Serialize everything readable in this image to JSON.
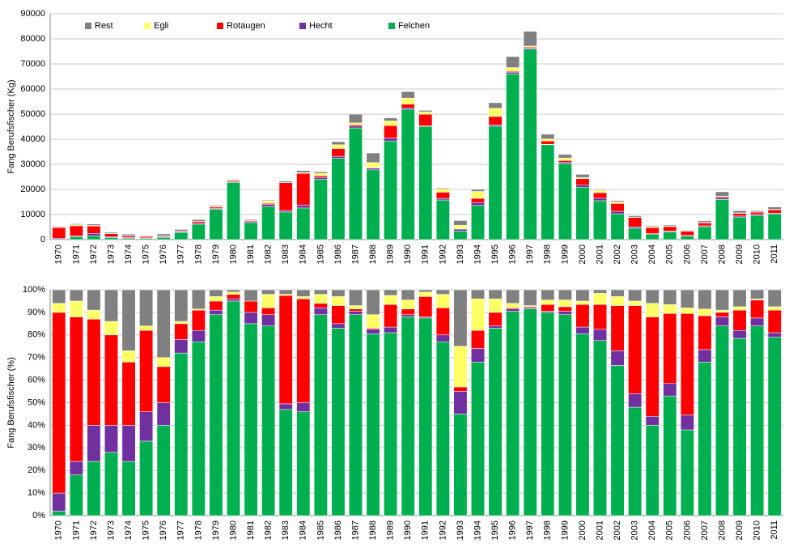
{
  "chart_data": [
    {
      "type": "stacked_bar",
      "y_label": "Fang Berufsfischer (Kg)",
      "categories": [
        "1970",
        "1971",
        "1972",
        "1973",
        "1974",
        "1975",
        "1976",
        "1977",
        "1978",
        "1979",
        "1980",
        "1981",
        "1982",
        "1983",
        "1984",
        "1985",
        "1986",
        "1987",
        "1988",
        "1989",
        "1990",
        "1991",
        "1992",
        "1993",
        "1994",
        "1995",
        "1996",
        "1997",
        "1998",
        "1999",
        "2000",
        "2001",
        "2002",
        "2003",
        "2004",
        "2005",
        "2006",
        "2007",
        "2008",
        "2009",
        "2010",
        "2011"
      ],
      "series": [
        {
          "name": "Felchen",
          "color": "#00b050",
          "values": [
            100,
            1100,
            1500,
            850,
            500,
            500,
            900,
            2900,
            6150,
            12100,
            22800,
            6800,
            13200,
            11000,
            12600,
            24000,
            32400,
            44500,
            27800,
            39300,
            51900,
            45100,
            15800,
            3400,
            13600,
            45200,
            66000,
            75900,
            37800,
            30300,
            20900,
            15500,
            10300,
            4550,
            2200,
            3100,
            1400,
            5100,
            16000,
            9000,
            9650,
            10300
          ]
        },
        {
          "name": "Hecht",
          "color": "#7030a0",
          "values": [
            450,
            400,
            1000,
            350,
            350,
            200,
            250,
            250,
            400,
            300,
            250,
            400,
            800,
            600,
            1100,
            800,
            800,
            750,
            700,
            1200,
            600,
            250,
            600,
            800,
            1200,
            550,
            700,
            400,
            200,
            500,
            800,
            1000,
            1000,
            550,
            200,
            300,
            250,
            400,
            750,
            400,
            400,
            250
          ]
        },
        {
          "name": "Rotaugen",
          "color": "#ff0000",
          "values": [
            4250,
            4000,
            2900,
            1200,
            600,
            550,
            350,
            300,
            700,
            550,
            500,
            400,
            450,
            11100,
            12700,
            600,
            3100,
            500,
            200,
            4900,
            1500,
            4600,
            2500,
            150,
            1600,
            3300,
            350,
            400,
            1300,
            700,
            2600,
            2200,
            3100,
            3700,
            2400,
            1800,
            1650,
            1150,
            400,
            1050,
            900,
            1300
          ]
        },
        {
          "name": "Egli",
          "color": "#ffff66",
          "values": [
            200,
            450,
            250,
            200,
            100,
            30,
            100,
            50,
            50,
            250,
            250,
            50,
            950,
            100,
            300,
            1000,
            1500,
            750,
            2000,
            1900,
            2400,
            1000,
            1200,
            1350,
            2800,
            3300,
            1500,
            400,
            800,
            1000,
            400,
            1000,
            600,
            200,
            350,
            250,
            100,
            200,
            200,
            200,
            100,
            200
          ]
        },
        {
          "name": "Rest",
          "color": "#808080",
          "values": [
            300,
            350,
            550,
            400,
            600,
            250,
            700,
            550,
            700,
            400,
            200,
            350,
            300,
            500,
            800,
            600,
            1200,
            3500,
            3800,
            1200,
            2600,
            550,
            400,
            1900,
            800,
            2200,
            4400,
            5900,
            1900,
            1500,
            1300,
            300,
            500,
            500,
            350,
            400,
            300,
            650,
            1700,
            850,
            450,
            950
          ]
        }
      ],
      "ylim": [
        0,
        90000
      ],
      "yticks": [
        0,
        10000,
        20000,
        30000,
        40000,
        50000,
        60000,
        70000,
        80000,
        90000
      ],
      "grid": true,
      "legend": "top-left"
    },
    {
      "type": "stacked_bar",
      "y_label": "Fang Berufsfischer (%)",
      "categories": [
        "1970",
        "1971",
        "1972",
        "1973",
        "1974",
        "1975",
        "1976",
        "1977",
        "1978",
        "1979",
        "1980",
        "1981",
        "1982",
        "1983",
        "1984",
        "1985",
        "1986",
        "1987",
        "1988",
        "1989",
        "1990",
        "1991",
        "1992",
        "1993",
        "1994",
        "1995",
        "1996",
        "1997",
        "1998",
        "1999",
        "2000",
        "2001",
        "2002",
        "2003",
        "2004",
        "2005",
        "2006",
        "2007",
        "2008",
        "2009",
        "2010",
        "2011"
      ],
      "series": [
        {
          "color": "#00b050",
          "values": [
            2,
            18,
            24,
            28,
            24,
            33,
            40,
            72,
            77,
            89,
            95,
            85,
            84,
            47,
            46,
            89,
            83,
            89,
            80.5,
            81,
            88,
            87.5,
            77,
            45,
            68,
            83,
            90.5,
            91.5,
            90,
            89,
            80.5,
            77.5,
            66.5,
            48,
            40,
            53,
            38,
            68,
            84,
            78.5,
            84,
            79
          ]
        },
        {
          "color": "#7030a0",
          "values": [
            8,
            6,
            16,
            12,
            16,
            13,
            10,
            6,
            5,
            2,
            1,
            5,
            5,
            2.5,
            4,
            3,
            2,
            1.5,
            2,
            2.5,
            1,
            0.5,
            3,
            10,
            6,
            1,
            1,
            0.5,
            0.5,
            1.5,
            3,
            5,
            6.5,
            6,
            4,
            5.5,
            6.5,
            5.5,
            4,
            3.5,
            3.5,
            2
          ]
        },
        {
          "color": "#ff0000",
          "values": [
            80,
            64,
            47,
            40,
            28,
            36,
            16,
            7,
            9,
            4,
            2,
            5,
            3,
            48,
            46,
            2,
            8,
            1,
            0.5,
            10,
            2.5,
            9,
            12,
            2,
            8,
            6,
            0.5,
            0.5,
            3,
            2,
            10,
            11,
            20,
            39,
            44,
            31,
            45,
            15,
            2,
            9,
            8,
            10
          ]
        },
        {
          "color": "#ffff66",
          "values": [
            4,
            7,
            4,
            6,
            5,
            2,
            4,
            1,
            0.5,
            2,
            1,
            0,
            6,
            0.5,
            1,
            4,
            4,
            1.5,
            6,
            4,
            4,
            2,
            6,
            18,
            14,
            6,
            2,
            0.5,
            2,
            3,
            1.5,
            5,
            4,
            2,
            6,
            4,
            2.5,
            3,
            1,
            1.5,
            0.5,
            1.5
          ]
        },
        {
          "color": "#808080",
          "values": [
            6,
            5,
            9,
            14,
            27,
            16,
            30,
            14,
            8.5,
            3,
            1,
            5,
            2,
            2,
            3,
            2,
            3,
            7,
            11,
            2.5,
            4.5,
            1,
            2,
            25,
            4,
            4,
            6,
            7,
            4.5,
            4.5,
            5,
            1.5,
            3,
            5,
            6,
            6.5,
            8,
            8.5,
            9,
            7.5,
            4,
            7.5
          ]
        }
      ],
      "ylim": [
        0,
        100
      ],
      "yticks": [
        {
          "value": 0,
          "label": "0%"
        },
        {
          "value": 10,
          "label": "10%"
        },
        {
          "value": 20,
          "label": "20%"
        },
        {
          "value": 30,
          "label": "30%"
        },
        {
          "value": 40,
          "label": "40%"
        },
        {
          "value": 50,
          "label": "50%"
        },
        {
          "value": 60,
          "label": "60%"
        },
        {
          "value": 70,
          "label": "70%"
        },
        {
          "value": 80,
          "label": "80%"
        },
        {
          "value": 90,
          "label": "90%"
        },
        {
          "value": 100,
          "label": "100%"
        }
      ],
      "grid": true
    }
  ]
}
